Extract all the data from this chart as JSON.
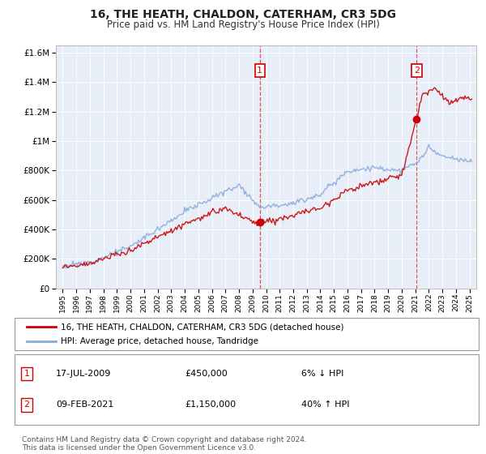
{
  "title": "16, THE HEATH, CHALDON, CATERHAM, CR3 5DG",
  "subtitle": "Price paid vs. HM Land Registry's House Price Index (HPI)",
  "legend_label_red": "16, THE HEATH, CHALDON, CATERHAM, CR3 5DG (detached house)",
  "legend_label_blue": "HPI: Average price, detached house, Tandridge",
  "annotation1_date": "17-JUL-2009",
  "annotation1_price": "£450,000",
  "annotation1_change": "6% ↓ HPI",
  "annotation2_date": "09-FEB-2021",
  "annotation2_price": "£1,150,000",
  "annotation2_change": "40% ↑ HPI",
  "footer": "Contains HM Land Registry data © Crown copyright and database right 2024.\nThis data is licensed under the Open Government Licence v3.0.",
  "sale1_x": 2009.54,
  "sale1_y": 450000,
  "sale2_x": 2021.1,
  "sale2_y": 1150000,
  "ylim": [
    0,
    1650000
  ],
  "xlim": [
    1994.5,
    2025.5
  ],
  "plot_bg": "#e8eef8",
  "red_color": "#cc0000",
  "blue_color": "#88aadd",
  "vline_color": "#cc0000",
  "grid_color": "#ffffff"
}
